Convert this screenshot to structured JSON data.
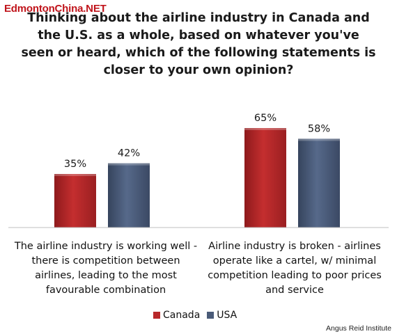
{
  "watermark": "EdmontonChina.NET",
  "title": "Thinking about the airline industry in Canada and the U.S. as a whole, based on whatever you've seen or heard, which of the following statements is closer to your own opinion?",
  "source": "Angus Reid Institute",
  "colors": {
    "canada": "#b8282a",
    "usa": "#4a5b78"
  },
  "chart_data": {
    "type": "bar",
    "title": "Thinking about the airline industry in Canada and the U.S. as a whole, based on whatever you've seen or heard, which of the following statements is closer to your own opinion?",
    "categories": [
      "The airline industry is working well - there is competition between airlines, leading to the most favourable combination",
      "Airline industry is broken - airlines operate like a cartel, w/ minimal competition leading to poor prices and service"
    ],
    "series": [
      {
        "name": "Canada",
        "values": [
          35,
          65
        ]
      },
      {
        "name": "USA",
        "values": [
          42,
          58
        ]
      }
    ],
    "data_labels": [
      [
        "35%",
        "65%"
      ],
      [
        "42%",
        "58%"
      ]
    ],
    "ylim": [
      0,
      100
    ],
    "grid": false,
    "legend": "bottom"
  }
}
